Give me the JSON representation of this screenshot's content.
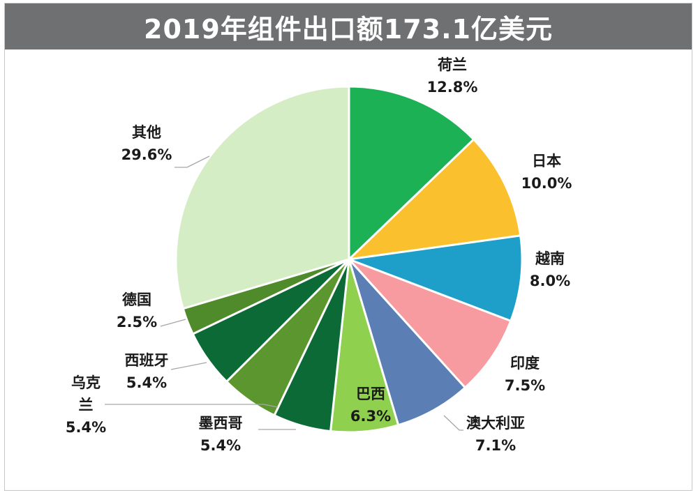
{
  "chart_data": {
    "type": "pie",
    "title": "2019年组件出口额173.1亿美元",
    "start_angle": "12 o'clock, clockwise",
    "slices": [
      {
        "name": "荷兰",
        "label_lines": [
          "荷兰"
        ],
        "value": 12.8,
        "value_label": "12.8%",
        "color": "#1db155"
      },
      {
        "name": "日本",
        "label_lines": [
          "日本"
        ],
        "value": 10.0,
        "value_label": "10.0%",
        "color": "#fbc02d"
      },
      {
        "name": "越南",
        "label_lines": [
          "越南"
        ],
        "value": 8.0,
        "value_label": "8.0%",
        "color": "#1e9fca"
      },
      {
        "name": "印度",
        "label_lines": [
          "印度"
        ],
        "value": 7.5,
        "value_label": "7.5%",
        "color": "#f79ba0"
      },
      {
        "name": "澳大利亚",
        "label_lines": [
          "澳大利亚"
        ],
        "value": 7.1,
        "value_label": "7.1%",
        "color": "#5b7fb5"
      },
      {
        "name": "巴西",
        "label_lines": [
          "巴西"
        ],
        "value": 6.3,
        "value_label": "6.3%",
        "color": "#8fd14f"
      },
      {
        "name": "墨西哥",
        "label_lines": [
          "墨西哥"
        ],
        "value": 5.4,
        "value_label": "5.4%",
        "color": "#0b6a35"
      },
      {
        "name": "乌克兰",
        "label_lines": [
          "乌克",
          "兰"
        ],
        "value": 5.4,
        "value_label": "5.4%",
        "color": "#5c962f"
      },
      {
        "name": "西班牙",
        "label_lines": [
          "西班牙"
        ],
        "value": 5.4,
        "value_label": "5.4%",
        "color": "#0b6a35"
      },
      {
        "name": "德国",
        "label_lines": [
          "德国"
        ],
        "value": 2.5,
        "value_label": "2.5%",
        "color": "#4f8a2b"
      },
      {
        "name": "其他",
        "label_lines": [
          "其他"
        ],
        "value": 29.6,
        "value_label": "29.6%",
        "color": "#d5edc4"
      }
    ]
  }
}
